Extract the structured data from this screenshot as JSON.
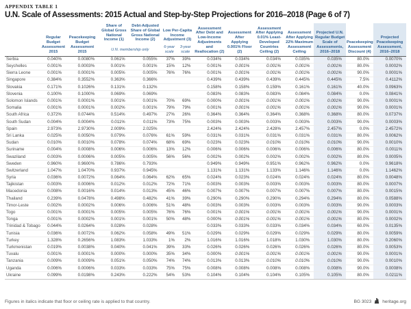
{
  "meta": {
    "appendix_label": "APPENDIX TABLE 1",
    "title": "U.N. Scale of Assessments: 2015 Actual and Step-by-Step Projections for 2016–2018 (Page 6 of 7)"
  },
  "colors": {
    "header_blue": "#2e6093",
    "band_header": "#dde7f1",
    "band_body": "#e9eef6"
  },
  "table": {
    "headers": {
      "regular": "Regular Budget Assess­ment 2015",
      "peacekeeping": "Peacekeeping Budget Assessment 2015",
      "share_gni": "Share of Global Gross National Income (1)",
      "debt_adjusted": "Debt-Adjusted Share of Global Gross National Income (2)",
      "low_per_capita": "Low Per-Capita Income Adjustment (3)",
      "after_debt_low_income": "Assessment After Debt and Low-Income Adjustments and Reallocation (2)",
      "after_floor": "Assessment After Applying 0.001% Floor (2)",
      "after_ldc_ceiling": "Assessment After Applying 0.01% Least-Developed Countries Ceiling (2)",
      "after_max_ceiling": "Assessment After Applying 22% Maximum Assessment Ceiling",
      "projected_regular": "Projected U.N. Regular Budget Scale of Assessments, 2016–2018",
      "discount": "Peacekeeping Assessment Discount (4)",
      "projected_peacekeeping": "Projected Peacekeeping Assessment, 2016–2018"
    },
    "membership_note": "U.N. membership only",
    "subheaders": {
      "six_year": "6-year scale",
      "three_year": "3-year scale"
    },
    "rows": [
      {
        "country": "Serbia",
        "values": [
          "0.040%",
          "0.0080%",
          "0.061%",
          "0.055%",
          "37%",
          "39%",
          "0.034%",
          "0.034%",
          "0.034%",
          "0.035%",
          "0.035%",
          "80.0%",
          "0.0070%"
        ],
        "italics": []
      },
      {
        "country": "Seychelles",
        "values": [
          "0.001%",
          "0.0003%",
          "0.001%",
          "0.001%",
          "15%",
          "12%",
          "0.001%",
          "0.001%",
          "0.001%",
          "0.001%",
          "0.001%",
          "80.0%",
          "0.0002%"
        ],
        "italics": [
          7,
          8,
          9,
          10
        ]
      },
      {
        "country": "Sierra Leone",
        "values": [
          "0.001%",
          "0.0001%",
          "0.005%",
          "0.005%",
          "76%",
          "76%",
          "0.001%",
          "0.001%",
          "0.001%",
          "0.001%",
          "0.001%",
          "90.0%",
          "0.0001%"
        ],
        "italics": [
          7,
          8,
          9,
          10
        ]
      },
      {
        "country": "Singapore",
        "values": [
          "0.384%",
          "0.3552%",
          "0.363%",
          "0.366%",
          "",
          "",
          "0.439%",
          "0.439%",
          "0.439%",
          "0.445%",
          "0.445%",
          "7.5%",
          "0.4112%"
        ],
        "italics": []
      },
      {
        "country": "Slovakia",
        "values": [
          "0.171%",
          "0.1026%",
          "0.131%",
          "0.132%",
          "",
          "",
          "0.158%",
          "0.158%",
          "0.159%",
          "0.161%",
          "0.161%",
          "40.0%",
          "0.0963%"
        ],
        "italics": []
      },
      {
        "country": "Slovenia",
        "values": [
          "0.100%",
          "0.1000%",
          "0.069%",
          "0.069%",
          "",
          "",
          "0.083%",
          "0.083%",
          "0.083%",
          "0.084%",
          "0.084%",
          "0.0%",
          "0.0841%"
        ],
        "italics": []
      },
      {
        "country": "Solomon Islands",
        "values": [
          "0.001%",
          "0.0001%",
          "0.001%",
          "0.001%",
          "70%",
          "69%",
          "0.000%",
          "0.001%",
          "0.001%",
          "0.001%",
          "0.001%",
          "90.0%",
          "0.0001%"
        ],
        "italics": [
          7,
          8,
          9,
          10
        ]
      },
      {
        "country": "Somalia",
        "values": [
          "0.001%",
          "0.0001%",
          "0.002%",
          "0.001%",
          "79%",
          "79%",
          "0.001%",
          "0.001%",
          "0.001%",
          "0.001%",
          "0.001%",
          "90.0%",
          "0.0001%"
        ],
        "italics": [
          7,
          8,
          9,
          10
        ]
      },
      {
        "country": "South Africa",
        "values": [
          "0.372%",
          "0.0744%",
          "0.514%",
          "0.497%",
          "27%",
          "26%",
          "0.364%",
          "0.364%",
          "0.364%",
          "0.368%",
          "0.368%",
          "80.0%",
          "0.0737%"
        ],
        "italics": []
      },
      {
        "country": "South Sudan",
        "values": [
          "0.004%",
          "0.0004%",
          "0.011%",
          "0.011%",
          "73%",
          "75%",
          "0.003%",
          "0.003%",
          "0.003%",
          "0.003%",
          "0.003%",
          "90.0%",
          "0.0003%"
        ],
        "italics": []
      },
      {
        "country": "Spain",
        "values": [
          "2.973%",
          "2.9730%",
          "2.009%",
          "2.025%",
          "",
          "",
          "2.424%",
          "2.424%",
          "2.428%",
          "2.457%",
          "2.457%",
          "0.0%",
          "2.4572%"
        ],
        "italics": []
      },
      {
        "country": "Sri Lanka",
        "values": [
          "0.025%",
          "0.0050%",
          "0.079%",
          "0.076%",
          "61%",
          "59%",
          "0.031%",
          "0.031%",
          "0.031%",
          "0.031%",
          "0.031%",
          "80.0%",
          "0.0062%"
        ],
        "italics": []
      },
      {
        "country": "Sudan",
        "values": [
          "0.010%",
          "0.0010%",
          "0.078%",
          "0.074%",
          "68%",
          "69%",
          "0.023%",
          "0.023%",
          "0.010%",
          "0.010%",
          "0.010%",
          "90.0%",
          "0.0010%"
        ],
        "italics": [
          8,
          9,
          10
        ]
      },
      {
        "country": "Suriname",
        "values": [
          "0.004%",
          "0.0008%",
          "0.006%",
          "0.006%",
          "13%",
          "12%",
          "0.006%",
          "0.006%",
          "0.006%",
          "0.006%",
          "0.006%",
          "80.0%",
          "0.0011%"
        ],
        "italics": []
      },
      {
        "country": "Swaziland",
        "values": [
          "0.003%",
          "0.0006%",
          "0.005%",
          "0.005%",
          "56%",
          "56%",
          "0.002%",
          "0.002%",
          "0.002%",
          "0.002%",
          "0.002%",
          "80.0%",
          "0.0005%"
        ],
        "italics": []
      },
      {
        "country": "Sweden",
        "values": [
          "0.960%",
          "0.9600%",
          "0.786%",
          "0.793%",
          "",
          "",
          "0.949%",
          "0.949%",
          "0.951%",
          "0.962%",
          "0.962%",
          "0.0%",
          "0.9618%"
        ],
        "italics": []
      },
      {
        "country": "Switzerland",
        "values": [
          "1.047%",
          "1.0470%",
          "0.937%",
          "0.945%",
          "",
          "",
          "1.131%",
          "1.131%",
          "1.133%",
          "1.146%",
          "1.146%",
          "0.0%",
          "1.1462%"
        ],
        "italics": []
      },
      {
        "country": "Syria",
        "values": [
          "0.036%",
          "0.0072%",
          "0.064%",
          "0.064%",
          "62%",
          "65%",
          "0.024%",
          "0.023%",
          "0.024%",
          "0.024%",
          "0.024%",
          "80.0%",
          "0.0048%"
        ],
        "italics": []
      },
      {
        "country": "Tajikistan",
        "values": [
          "0.003%",
          "0.0006%",
          "0.012%",
          "0.012%",
          "72%",
          "71%",
          "0.003%",
          "0.003%",
          "0.003%",
          "0.003%",
          "0.003%",
          "80.0%",
          "0.0007%"
        ],
        "italics": []
      },
      {
        "country": "Macedonia",
        "values": [
          "0.008%",
          "0.0016%",
          "0.014%",
          "0.013%",
          "45%",
          "46%",
          "0.007%",
          "0.007%",
          "0.007%",
          "0.007%",
          "0.007%",
          "80.0%",
          "0.0015%"
        ],
        "italics": []
      },
      {
        "country": "Thailand",
        "values": [
          "0.239%",
          "0.0478%",
          "0.498%",
          "0.482%",
          "41%",
          "39%",
          "0.290%",
          "0.290%",
          "0.290%",
          "0.294%",
          "0.294%",
          "80.0%",
          "0.0588%"
        ],
        "italics": []
      },
      {
        "country": "Timor-Leste",
        "values": [
          "0.002%",
          "0.0002%",
          "0.006%",
          "0.006%",
          "51%",
          "48%",
          "0.003%",
          "0.003%",
          "0.003%",
          "0.003%",
          "0.003%",
          "90.0%",
          "0.0003%"
        ],
        "italics": []
      },
      {
        "country": "Togo",
        "values": [
          "0.001%",
          "0.0001%",
          "0.005%",
          "0.005%",
          "76%",
          "76%",
          "0.001%",
          "0.001%",
          "0.001%",
          "0.001%",
          "0.001%",
          "90.0%",
          "0.0001%"
        ],
        "italics": [
          7,
          8,
          9,
          10
        ]
      },
      {
        "country": "Tonga",
        "values": [
          "0.001%",
          "0.0002%",
          "0.001%",
          "0.001%",
          "50%",
          "48%",
          "0.000%",
          "0.001%",
          "0.001%",
          "0.001%",
          "0.001%",
          "80.0%",
          "0.0002%"
        ],
        "italics": [
          7,
          8,
          9,
          10
        ]
      },
      {
        "country": "Trinidad & Tobago",
        "values": [
          "0.044%",
          "0.0264%",
          "0.028%",
          "0.028%",
          "",
          "",
          "0.033%",
          "0.033%",
          "0.033%",
          "0.034%",
          "0.034%",
          "60.0%",
          "0.0135%"
        ],
        "italics": []
      },
      {
        "country": "Tunisia",
        "values": [
          "0.036%",
          "0.0072%",
          "0.062%",
          "0.058%",
          "49%",
          "51%",
          "0.029%",
          "0.029%",
          "0.029%",
          "0.029%",
          "0.029%",
          "80.0%",
          "0.0059%"
        ],
        "italics": []
      },
      {
        "country": "Turkey",
        "values": [
          "1.328%",
          "0.2656%",
          "1.083%",
          "1.033%",
          "1%",
          "2%",
          "1.016%",
          "1.016%",
          "1.018%",
          "1.030%",
          "1.030%",
          "80.0%",
          "0.2060%"
        ],
        "italics": []
      },
      {
        "country": "Turkmenistan",
        "values": [
          "0.019%",
          "0.0038%",
          "0.040%",
          "0.041%",
          "39%",
          "33%",
          "0.026%",
          "0.026%",
          "0.026%",
          "0.026%",
          "0.026%",
          "80.0%",
          "0.0053%"
        ],
        "italics": []
      },
      {
        "country": "Tuvalu",
        "values": [
          "0.001%",
          "0.0001%",
          "0.000%",
          "0.000%",
          "35%",
          "34%",
          "0.000%",
          "0.001%",
          "0.001%",
          "0.001%",
          "0.001%",
          "90.0%",
          "0.0001%"
        ],
        "italics": [
          7,
          8,
          9,
          10
        ]
      },
      {
        "country": "Tanzania",
        "values": [
          "0.009%",
          "0.0009%",
          "0.051%",
          "0.050%",
          "74%",
          "74%",
          "0.013%",
          "0.013%",
          "0.010%",
          "0.010%",
          "0.010%",
          "90.0%",
          "0.0010%"
        ],
        "italics": [
          8,
          9,
          10
        ]
      },
      {
        "country": "Uganda",
        "values": [
          "0.006%",
          "0.0006%",
          "0.033%",
          "0.033%",
          "75%",
          "75%",
          "0.008%",
          "0.008%",
          "0.008%",
          "0.008%",
          "0.008%",
          "90.0%",
          "0.0008%"
        ],
        "italics": []
      },
      {
        "country": "Ukraine",
        "values": [
          "0.099%",
          "0.0198%",
          "0.243%",
          "0.222%",
          "54%",
          "53%",
          "0.104%",
          "0.104%",
          "0.104%",
          "0.105%",
          "0.105%",
          "80.0%",
          "0.0211%"
        ],
        "italics": []
      }
    ]
  },
  "footer": {
    "note": "Figures in italics indicate that floor or ceiling rate is applied to that country.",
    "doc_id": "BG 3023",
    "site": "heritage.org"
  }
}
